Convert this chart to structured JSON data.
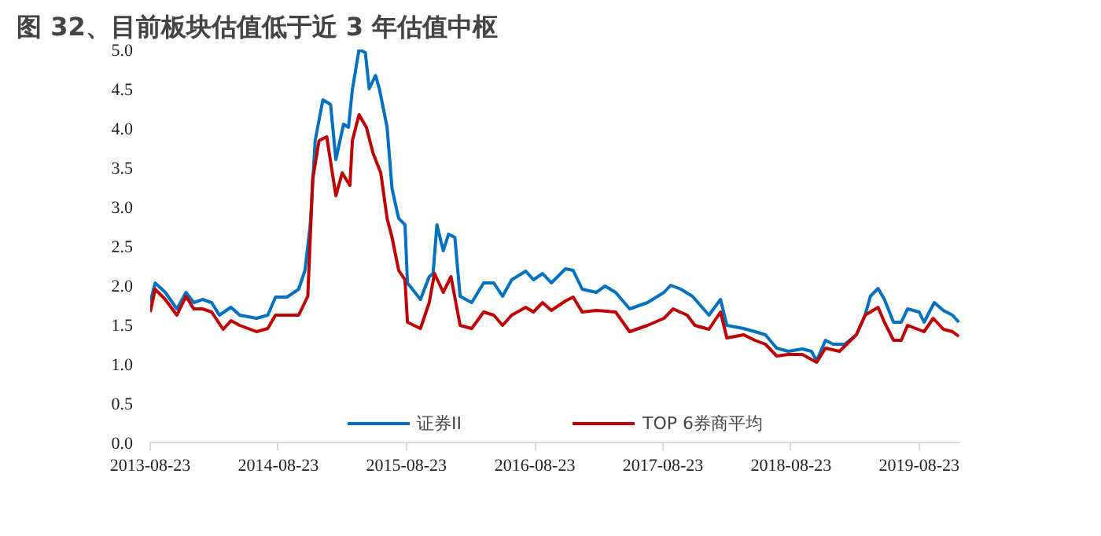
{
  "chart_data": {
    "type": "line",
    "title": "图 32、目前板块估值低于近 3 年估值中枢",
    "xlim": [
      "2013-08-23",
      "2019-12-18"
    ],
    "ylim": [
      0,
      5
    ],
    "xticks": [
      "2013-08-23",
      "2014-08-23",
      "2015-08-23",
      "2016-08-23",
      "2017-08-23",
      "2018-08-23",
      "2019-08-23"
    ],
    "yticks": [
      {
        "value": 0,
        "label": "0.0"
      },
      {
        "value": 0.5,
        "label": "0.5"
      },
      {
        "value": 1,
        "label": "1.0"
      },
      {
        "value": 1.5,
        "label": "1.5"
      },
      {
        "value": 2,
        "label": "2.0"
      },
      {
        "value": 2.5,
        "label": "2.5"
      },
      {
        "value": 3,
        "label": "3.0"
      },
      {
        "value": 3.5,
        "label": "3.5"
      },
      {
        "value": 4,
        "label": "4.0"
      },
      {
        "value": 4.5,
        "label": "4.5"
      },
      {
        "value": 5,
        "label": "5.0"
      }
    ],
    "grid": false,
    "legend": "bottom",
    "marker": "none",
    "line_style": "solid",
    "series": [
      {
        "name": "证券II",
        "color": "#0070c0",
        "x": [
          "2013-08-23",
          "2013-09-06",
          "2013-10-05",
          "2013-11-07",
          "2013-12-03",
          "2013-12-25",
          "2014-01-19",
          "2014-02-14",
          "2014-03-08",
          "2014-04-10",
          "2014-05-05",
          "2014-06-22",
          "2014-07-24",
          "2014-08-15",
          "2014-09-17",
          "2014-10-20",
          "2014-11-07",
          "2014-11-22",
          "2014-12-06",
          "2014-12-28",
          "2015-01-19",
          "2015-02-03",
          "2015-02-25",
          "2015-03-11",
          "2015-03-22",
          "2015-04-10",
          "2015-04-28",
          "2015-05-09",
          "2015-05-27",
          "2015-06-07",
          "2015-06-29",
          "2015-07-13",
          "2015-08-01",
          "2015-08-19",
          "2015-08-26",
          "2015-10-02",
          "2015-10-27",
          "2015-11-07",
          "2015-11-18",
          "2015-12-06",
          "2015-12-21",
          "2016-01-08",
          "2016-01-23",
          "2016-02-25",
          "2016-03-30",
          "2016-04-28",
          "2016-05-23",
          "2016-06-18",
          "2016-07-28",
          "2016-08-19",
          "2016-09-14",
          "2016-10-09",
          "2016-11-18",
          "2016-12-10",
          "2017-01-05",
          "2017-02-14",
          "2017-03-11",
          "2017-04-10",
          "2017-05-20",
          "2017-07-10",
          "2017-08-26",
          "2017-09-14",
          "2017-10-13",
          "2017-11-15",
          "2018-01-01",
          "2018-02-03",
          "2018-02-21",
          "2018-04-10",
          "2018-05-12",
          "2018-06-11",
          "2018-07-13",
          "2018-08-15",
          "2018-09-24",
          "2018-10-20",
          "2018-11-04",
          "2018-11-29",
          "2018-12-21",
          "2019-01-23",
          "2019-02-25",
          "2019-03-22",
          "2019-04-06",
          "2019-04-28",
          "2019-05-16",
          "2019-06-11",
          "2019-07-03",
          "2019-07-21",
          "2019-08-23",
          "2019-09-06",
          "2019-10-05",
          "2019-10-31",
          "2019-11-26",
          "2019-12-14"
        ],
        "values": [
          1.78,
          2.03,
          1.91,
          1.7,
          1.91,
          1.78,
          1.82,
          1.78,
          1.62,
          1.72,
          1.62,
          1.58,
          1.62,
          1.85,
          1.85,
          1.95,
          2.19,
          2.77,
          3.84,
          4.36,
          4.3,
          3.6,
          4.05,
          4.01,
          4.49,
          5.0,
          4.96,
          4.5,
          4.67,
          4.5,
          4.01,
          3.23,
          2.85,
          2.77,
          2.03,
          1.82,
          2.11,
          2.15,
          2.77,
          2.44,
          2.65,
          2.61,
          1.86,
          1.78,
          2.03,
          2.03,
          1.86,
          2.07,
          2.18,
          2.07,
          2.15,
          2.03,
          2.21,
          2.19,
          1.95,
          1.91,
          1.99,
          1.91,
          1.7,
          1.78,
          1.91,
          2.0,
          1.95,
          1.86,
          1.62,
          1.82,
          1.49,
          1.45,
          1.41,
          1.37,
          1.2,
          1.16,
          1.19,
          1.16,
          1.04,
          1.3,
          1.25,
          1.25,
          1.37,
          1.62,
          1.86,
          1.96,
          1.82,
          1.53,
          1.53,
          1.7,
          1.66,
          1.53,
          1.78,
          1.68,
          1.62,
          1.53
        ]
      },
      {
        "name": "TOP 6券商平均",
        "color": "#c00000",
        "x": [
          "2013-08-23",
          "2013-09-06",
          "2013-10-05",
          "2013-11-07",
          "2013-12-03",
          "2013-12-25",
          "2014-01-19",
          "2014-02-14",
          "2014-03-19",
          "2014-04-10",
          "2014-05-05",
          "2014-06-22",
          "2014-07-24",
          "2014-08-15",
          "2014-09-17",
          "2014-10-20",
          "2014-11-15",
          "2014-11-29",
          "2014-12-17",
          "2015-01-08",
          "2015-02-03",
          "2015-02-21",
          "2015-03-15",
          "2015-03-22",
          "2015-04-10",
          "2015-05-01",
          "2015-05-20",
          "2015-06-11",
          "2015-06-29",
          "2015-07-13",
          "2015-08-01",
          "2015-08-19",
          "2015-08-26",
          "2015-10-02",
          "2015-10-27",
          "2015-11-11",
          "2015-12-06",
          "2015-12-28",
          "2016-01-23",
          "2016-02-25",
          "2016-03-30",
          "2016-04-28",
          "2016-05-23",
          "2016-06-18",
          "2016-07-28",
          "2016-08-19",
          "2016-09-14",
          "2016-10-09",
          "2016-11-18",
          "2016-12-10",
          "2017-01-05",
          "2017-02-14",
          "2017-04-10",
          "2017-05-20",
          "2017-07-10",
          "2017-08-26",
          "2017-09-21",
          "2017-10-31",
          "2017-11-22",
          "2018-01-01",
          "2018-02-03",
          "2018-02-21",
          "2018-04-10",
          "2018-05-12",
          "2018-06-11",
          "2018-07-13",
          "2018-08-15",
          "2018-09-24",
          "2018-11-04",
          "2018-11-29",
          "2019-01-08",
          "2019-02-25",
          "2019-03-22",
          "2019-04-06",
          "2019-04-28",
          "2019-05-16",
          "2019-06-11",
          "2019-07-03",
          "2019-07-21",
          "2019-09-06",
          "2019-10-02",
          "2019-10-31",
          "2019-11-26",
          "2019-12-14"
        ],
        "values": [
          1.66,
          1.95,
          1.82,
          1.62,
          1.86,
          1.7,
          1.7,
          1.66,
          1.44,
          1.55,
          1.49,
          1.41,
          1.45,
          1.62,
          1.62,
          1.62,
          1.86,
          3.35,
          3.84,
          3.89,
          3.14,
          3.43,
          3.27,
          3.84,
          4.17,
          4.01,
          3.68,
          3.43,
          2.85,
          2.61,
          2.19,
          2.07,
          1.53,
          1.45,
          1.78,
          2.15,
          1.91,
          2.11,
          1.49,
          1.45,
          1.66,
          1.62,
          1.49,
          1.62,
          1.72,
          1.66,
          1.78,
          1.68,
          1.8,
          1.85,
          1.66,
          1.68,
          1.66,
          1.41,
          1.49,
          1.58,
          1.7,
          1.62,
          1.49,
          1.44,
          1.66,
          1.33,
          1.37,
          1.3,
          1.25,
          1.1,
          1.12,
          1.12,
          1.02,
          1.2,
          1.16,
          1.37,
          1.62,
          1.66,
          1.72,
          1.53,
          1.3,
          1.3,
          1.49,
          1.41,
          1.58,
          1.44,
          1.41,
          1.35
        ]
      }
    ]
  }
}
